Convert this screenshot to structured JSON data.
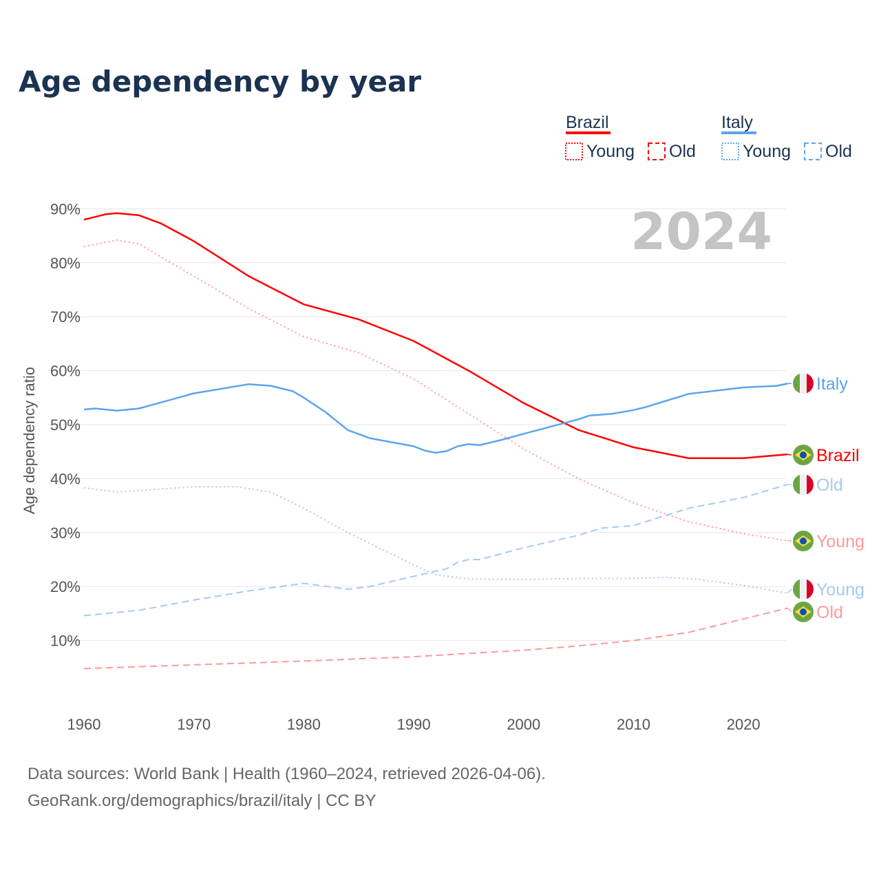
{
  "chart_data": {
    "type": "line",
    "title": "Age dependency by year",
    "ylabel": "Age dependency ratio",
    "xlabel": "",
    "xlim": [
      1960,
      2024
    ],
    "ylim": [
      0,
      90
    ],
    "x_ticks": [
      "1960",
      "1970",
      "1980",
      "1990",
      "2000",
      "2010",
      "2020"
    ],
    "y_ticks": [
      "10%",
      "20%",
      "30%",
      "40%",
      "50%",
      "60%",
      "70%",
      "80%",
      "90%"
    ],
    "year_watermark": "2024",
    "legend": {
      "placement": "top-right",
      "groups": [
        {
          "name": "Brazil",
          "color": "#ff0000",
          "items": [
            "Young",
            "Old"
          ]
        },
        {
          "name": "Italy",
          "color": "#5ba4ec",
          "items": [
            "Young",
            "Old"
          ]
        }
      ]
    },
    "series": [
      {
        "name": "Brazil",
        "country": "Brazil",
        "style": "solid",
        "color": "#ff0000",
        "end_label": "Brazil",
        "points": [
          [
            1960,
            88
          ],
          [
            1962,
            89
          ],
          [
            1963,
            89.2
          ],
          [
            1965,
            88.8
          ],
          [
            1967,
            87.3
          ],
          [
            1970,
            84
          ],
          [
            1975,
            77.5
          ],
          [
            1980,
            72.3
          ],
          [
            1985,
            69.5
          ],
          [
            1990,
            65.5
          ],
          [
            1995,
            60
          ],
          [
            2000,
            54
          ],
          [
            2005,
            49
          ],
          [
            2010,
            45.8
          ],
          [
            2015,
            43.8
          ],
          [
            2020,
            43.8
          ],
          [
            2024,
            44.5
          ]
        ]
      },
      {
        "name": "Brazil Young",
        "country": "Brazil",
        "style": "dotted",
        "color": "#ff9999",
        "end_label": "Young",
        "points": [
          [
            1960,
            83
          ],
          [
            1963,
            84.2
          ],
          [
            1965,
            83.5
          ],
          [
            1970,
            77.5
          ],
          [
            1975,
            71.5
          ],
          [
            1980,
            66.3
          ],
          [
            1985,
            63.3
          ],
          [
            1990,
            58.5
          ],
          [
            1995,
            52
          ],
          [
            2000,
            45.5
          ],
          [
            2005,
            40
          ],
          [
            2010,
            35.5
          ],
          [
            2015,
            32
          ],
          [
            2020,
            29.8
          ],
          [
            2024,
            28.5
          ]
        ]
      },
      {
        "name": "Brazil Old",
        "country": "Brazil",
        "style": "dashed",
        "color": "#ff9999",
        "end_label": "Old",
        "points": [
          [
            1960,
            4.8
          ],
          [
            1970,
            5.5
          ],
          [
            1980,
            6.2
          ],
          [
            1990,
            7.0
          ],
          [
            2000,
            8.2
          ],
          [
            2005,
            9
          ],
          [
            2010,
            10
          ],
          [
            2015,
            11.5
          ],
          [
            2020,
            14
          ],
          [
            2024,
            16
          ]
        ]
      },
      {
        "name": "Italy",
        "country": "Italy",
        "style": "solid",
        "color": "#5ba4ec",
        "end_label": "Italy",
        "points": [
          [
            1960,
            52.8
          ],
          [
            1961,
            53
          ],
          [
            1963,
            52.6
          ],
          [
            1965,
            53
          ],
          [
            1970,
            55.8
          ],
          [
            1975,
            57.5
          ],
          [
            1977,
            57.2
          ],
          [
            1979,
            56.2
          ],
          [
            1980,
            55
          ],
          [
            1982,
            52.3
          ],
          [
            1984,
            49
          ],
          [
            1986,
            47.5
          ],
          [
            1990,
            46
          ],
          [
            1991,
            45.2
          ],
          [
            1992,
            44.8
          ],
          [
            1993,
            45.1
          ],
          [
            1994,
            46
          ],
          [
            1995,
            46.4
          ],
          [
            1996,
            46.2
          ],
          [
            1998,
            47.2
          ],
          [
            2000,
            48.3
          ],
          [
            2005,
            51
          ],
          [
            2006,
            51.7
          ],
          [
            2008,
            52
          ],
          [
            2010,
            52.7
          ],
          [
            2011,
            53.2
          ],
          [
            2015,
            55.7
          ],
          [
            2020,
            56.9
          ],
          [
            2023,
            57.2
          ],
          [
            2024,
            57.6
          ]
        ]
      },
      {
        "name": "Italy Young",
        "country": "Italy",
        "style": "dotted",
        "color": "#a7c9f0",
        "end_label": "Young",
        "points": [
          [
            1960,
            38.3
          ],
          [
            1963,
            37.5
          ],
          [
            1970,
            38.5
          ],
          [
            1974,
            38.5
          ],
          [
            1977,
            37.5
          ],
          [
            1980,
            34.5
          ],
          [
            1984,
            30
          ],
          [
            1990,
            24
          ],
          [
            1992,
            22.2
          ],
          [
            1995,
            21.4
          ],
          [
            2000,
            21.3
          ],
          [
            2005,
            21.5
          ],
          [
            2010,
            21.5
          ],
          [
            2013,
            21.7
          ],
          [
            2016,
            21.3
          ],
          [
            2020,
            20.2
          ],
          [
            2024,
            18.8
          ]
        ]
      },
      {
        "name": "Italy Old",
        "country": "Italy",
        "style": "dashed",
        "color": "#a7c9f0",
        "end_label": "Old",
        "points": [
          [
            1960,
            14.6
          ],
          [
            1965,
            15.6
          ],
          [
            1970,
            17.5
          ],
          [
            1975,
            19.2
          ],
          [
            1980,
            20.6
          ],
          [
            1984,
            19.5
          ],
          [
            1986,
            20
          ],
          [
            1990,
            21.9
          ],
          [
            1993,
            23.3
          ],
          [
            1994,
            24.5
          ],
          [
            1995,
            25
          ],
          [
            1996,
            25
          ],
          [
            2000,
            27.2
          ],
          [
            2005,
            29.5
          ],
          [
            2007,
            30.8
          ],
          [
            2010,
            31.3
          ],
          [
            2015,
            34.5
          ],
          [
            2020,
            36.5
          ],
          [
            2024,
            38.9
          ]
        ]
      }
    ]
  },
  "footer": {
    "line1": "Data sources: World Bank | Health (1960–2024, retrieved 2026-04-06).",
    "line2": "GeoRank.org/demographics/brazil/italy | CC BY"
  }
}
